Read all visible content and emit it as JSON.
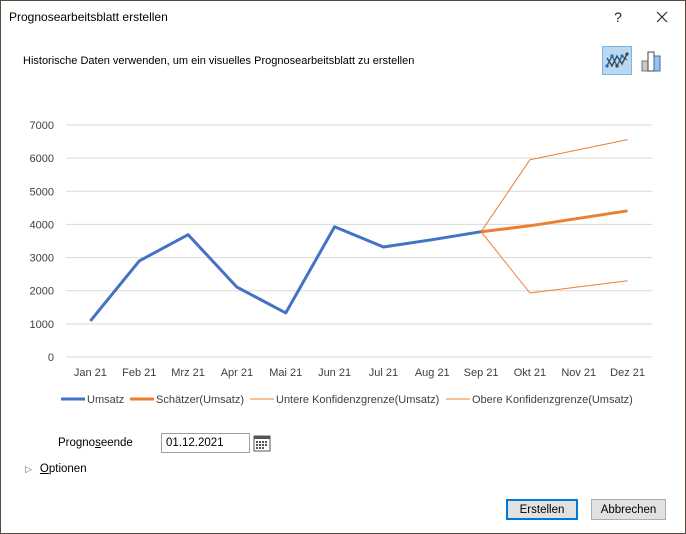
{
  "window": {
    "title": "Prognosearbeitsblatt erstellen",
    "help_label": "?",
    "close_label": "✕"
  },
  "header": {
    "subtitle": "Historische Daten verwenden, um ein visuelles Prognosearbeitsblatt zu erstellen",
    "chart_types": [
      {
        "name": "line-chart",
        "selected": true
      },
      {
        "name": "column-chart",
        "selected": false
      }
    ]
  },
  "colors": {
    "actual": "#4472c4",
    "forecast": "#ed7d31",
    "confidence": "#ed7d31",
    "gridline": "#d9d9d9",
    "selected_bg": "#b8d8f4",
    "default_button_border": "#0078d7"
  },
  "chart_data": {
    "type": "line",
    "title": "",
    "xlabel": "",
    "ylabel": "",
    "ylim": [
      0,
      7000
    ],
    "yticks": [
      0,
      1000,
      2000,
      3000,
      4000,
      5000,
      6000,
      7000
    ],
    "grid": true,
    "legend_position": "bottom",
    "categories": [
      "Jan 21",
      "Feb 21",
      "Mrz 21",
      "Apr 21",
      "Mai 21",
      "Jun 21",
      "Jul 21",
      "Aug 21",
      "Sep 21",
      "Okt 21",
      "Nov 21",
      "Dez 21"
    ],
    "series": [
      {
        "name": "Umsatz",
        "values": [
          1090,
          2900,
          3690,
          2110,
          1330,
          3930,
          3320,
          3540,
          3780,
          null,
          null,
          null
        ]
      },
      {
        "name": "Schätzer(Umsatz)",
        "values": [
          null,
          null,
          null,
          null,
          null,
          null,
          null,
          null,
          3780,
          3960,
          null,
          4410
        ]
      },
      {
        "name": "Untere Konfidenzgrenze(Umsatz)",
        "values": [
          null,
          null,
          null,
          null,
          null,
          null,
          null,
          null,
          3780,
          1930,
          null,
          2300
        ]
      },
      {
        "name": "Obere Konfidenzgrenze(Umsatz)",
        "values": [
          null,
          null,
          null,
          null,
          null,
          null,
          null,
          null,
          3780,
          5950,
          null,
          6560
        ]
      }
    ]
  },
  "form": {
    "forecast_end_label_pre": "Progno",
    "forecast_end_label_accel": "s",
    "forecast_end_label_post": "eende",
    "forecast_end_value": "01.12.2021",
    "options_accel": "O",
    "options_label_rest": "ptionen"
  },
  "buttons": {
    "create": "Erstellen",
    "cancel": "Abbrechen"
  }
}
